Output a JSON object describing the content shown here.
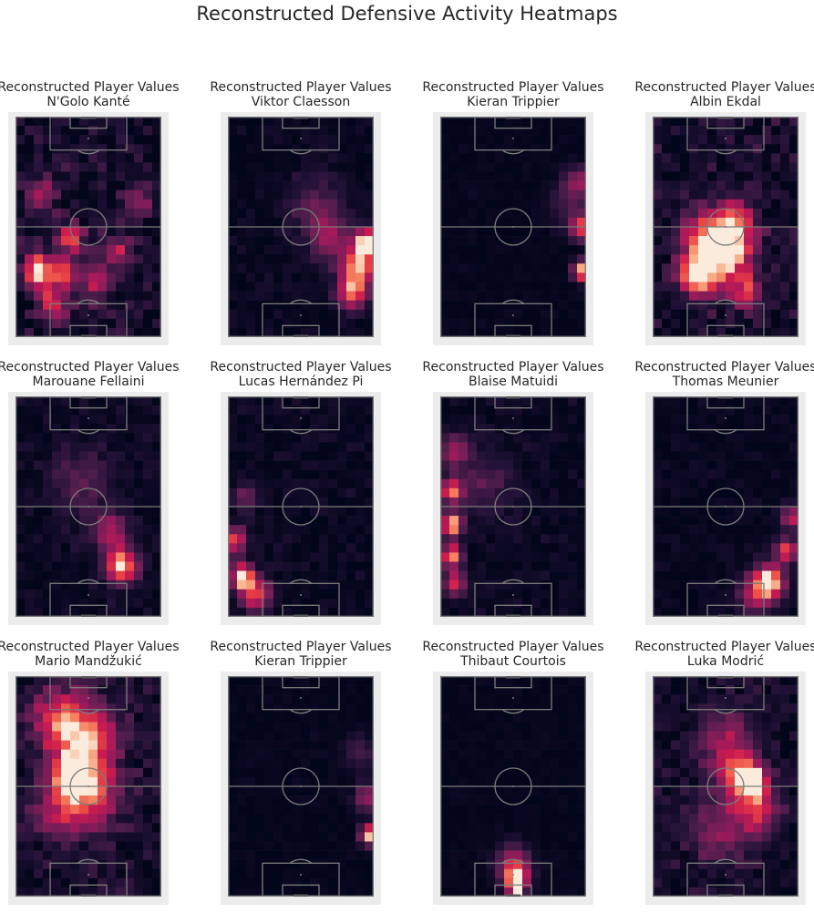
{
  "figure": {
    "suptitle": "Reconstructed Defensive Activity Heatmaps"
  },
  "chart_data": [
    {
      "type": "heatmap",
      "title": "Reconstructed Player Values",
      "subtitle": "N'Golo Kanté",
      "grid": [
        16,
        24
      ],
      "colormap": "rocket",
      "hotspots": [
        [
          0.15,
          0.7,
          0.1,
          1.0
        ],
        [
          0.33,
          0.7,
          0.1,
          0.7
        ],
        [
          0.38,
          0.55,
          0.08,
          0.75
        ],
        [
          0.25,
          0.85,
          0.1,
          0.6
        ],
        [
          0.55,
          0.75,
          0.1,
          0.55
        ],
        [
          0.7,
          0.6,
          0.1,
          0.45
        ],
        [
          0.2,
          0.35,
          0.1,
          0.4
        ],
        [
          0.85,
          0.4,
          0.1,
          0.35
        ]
      ],
      "base": 0.15,
      "noise": 0.22
    },
    {
      "type": "heatmap",
      "title": "Reconstructed Player Values",
      "subtitle": "Viktor Claesson",
      "grid": [
        16,
        24
      ],
      "colormap": "rocket",
      "hotspots": [
        [
          0.95,
          0.57,
          0.08,
          1.0
        ],
        [
          0.9,
          0.68,
          0.12,
          0.85
        ],
        [
          0.85,
          0.8,
          0.1,
          0.75
        ],
        [
          0.7,
          0.55,
          0.15,
          0.4
        ],
        [
          0.6,
          0.4,
          0.18,
          0.25
        ]
      ],
      "base": 0.05,
      "noise": 0.1
    },
    {
      "type": "heatmap",
      "title": "Reconstructed Player Values",
      "subtitle": "Kieran Trippier",
      "grid": [
        16,
        24
      ],
      "colormap": "rocket",
      "hotspots": [
        [
          0.97,
          0.7,
          0.06,
          1.0
        ],
        [
          0.97,
          0.5,
          0.08,
          0.75
        ],
        [
          0.95,
          0.3,
          0.1,
          0.45
        ],
        [
          0.85,
          0.4,
          0.12,
          0.2
        ]
      ],
      "base": 0.02,
      "noise": 0.06
    },
    {
      "type": "heatmap",
      "title": "Reconstructed Player Values",
      "subtitle": "Albin Ekdal",
      "grid": [
        16,
        24
      ],
      "colormap": "rocket",
      "hotspots": [
        [
          0.3,
          0.72,
          0.12,
          1.0
        ],
        [
          0.5,
          0.65,
          0.18,
          0.8
        ],
        [
          0.55,
          0.5,
          0.15,
          0.7
        ],
        [
          0.35,
          0.55,
          0.15,
          0.6
        ],
        [
          0.65,
          0.8,
          0.1,
          0.55
        ]
      ],
      "base": 0.15,
      "noise": 0.2
    },
    {
      "type": "heatmap",
      "title": "Reconstructed Player Values",
      "subtitle": "Marouane Fellaini",
      "grid": [
        16,
        24
      ],
      "colormap": "rocket",
      "hotspots": [
        [
          0.73,
          0.77,
          0.1,
          1.0
        ],
        [
          0.65,
          0.62,
          0.12,
          0.5
        ],
        [
          0.45,
          0.4,
          0.2,
          0.25
        ]
      ],
      "base": 0.08,
      "noise": 0.1
    },
    {
      "type": "heatmap",
      "title": "Reconstructed Player Values",
      "subtitle": "Lucas Hernández Pi",
      "grid": [
        16,
        24
      ],
      "colormap": "rocket",
      "hotspots": [
        [
          0.1,
          0.82,
          0.08,
          1.0
        ],
        [
          0.05,
          0.65,
          0.08,
          0.7
        ],
        [
          0.2,
          0.9,
          0.1,
          0.7
        ],
        [
          0.12,
          0.45,
          0.08,
          0.3
        ]
      ],
      "base": 0.06,
      "noise": 0.1
    },
    {
      "type": "heatmap",
      "title": "Reconstructed Player Values",
      "subtitle": "Blaise Matuidi",
      "grid": [
        16,
        24
      ],
      "colormap": "rocket",
      "hotspots": [
        [
          0.08,
          0.58,
          0.07,
          1.0
        ],
        [
          0.08,
          0.43,
          0.07,
          0.85
        ],
        [
          0.08,
          0.72,
          0.07,
          0.85
        ],
        [
          0.1,
          0.85,
          0.08,
          0.6
        ],
        [
          0.1,
          0.25,
          0.1,
          0.45
        ],
        [
          0.3,
          0.4,
          0.18,
          0.25
        ]
      ],
      "base": 0.06,
      "noise": 0.1
    },
    {
      "type": "heatmap",
      "title": "Reconstructed Player Values",
      "subtitle": "Thomas Meunier",
      "grid": [
        16,
        24
      ],
      "colormap": "rocket",
      "hotspots": [
        [
          0.8,
          0.84,
          0.1,
          1.0
        ],
        [
          0.92,
          0.7,
          0.07,
          0.75
        ],
        [
          0.95,
          0.55,
          0.07,
          0.6
        ],
        [
          0.7,
          0.9,
          0.12,
          0.5
        ]
      ],
      "base": 0.04,
      "noise": 0.08
    },
    {
      "type": "heatmap",
      "title": "Reconstructed Player Values",
      "subtitle": "Mario Mandžukić",
      "grid": [
        16,
        24
      ],
      "colormap": "rocket",
      "hotspots": [
        [
          0.4,
          0.45,
          0.12,
          1.0
        ],
        [
          0.5,
          0.3,
          0.2,
          0.75
        ],
        [
          0.3,
          0.2,
          0.2,
          0.6
        ],
        [
          0.55,
          0.55,
          0.18,
          0.6
        ],
        [
          0.3,
          0.6,
          0.18,
          0.5
        ]
      ],
      "base": 0.15,
      "noise": 0.18
    },
    {
      "type": "heatmap",
      "title": "Reconstructed Player Values",
      "subtitle": "Kieran Trippier",
      "grid": [
        16,
        24
      ],
      "colormap": "rocket",
      "hotspots": [
        [
          0.97,
          0.72,
          0.06,
          1.0
        ],
        [
          0.95,
          0.55,
          0.08,
          0.5
        ],
        [
          0.9,
          0.35,
          0.1,
          0.25
        ]
      ],
      "base": 0.02,
      "noise": 0.06
    },
    {
      "type": "heatmap",
      "title": "Reconstructed Player Values",
      "subtitle": "Thibaut Courtois",
      "grid": [
        16,
        24
      ],
      "colormap": "rocket",
      "hotspots": [
        [
          0.52,
          0.97,
          0.04,
          1.0
        ],
        [
          0.52,
          0.92,
          0.08,
          0.85
        ],
        [
          0.5,
          0.85,
          0.12,
          0.5
        ]
      ],
      "base": 0.02,
      "noise": 0.05
    },
    {
      "type": "heatmap",
      "title": "Reconstructed Player Values",
      "subtitle": "Luka Modrić",
      "grid": [
        16,
        24
      ],
      "colormap": "rocket",
      "hotspots": [
        [
          0.7,
          0.48,
          0.08,
          1.0
        ],
        [
          0.6,
          0.45,
          0.12,
          0.8
        ],
        [
          0.7,
          0.6,
          0.15,
          0.6
        ],
        [
          0.5,
          0.3,
          0.2,
          0.4
        ],
        [
          0.45,
          0.7,
          0.2,
          0.35
        ]
      ],
      "base": 0.12,
      "noise": 0.16
    }
  ]
}
